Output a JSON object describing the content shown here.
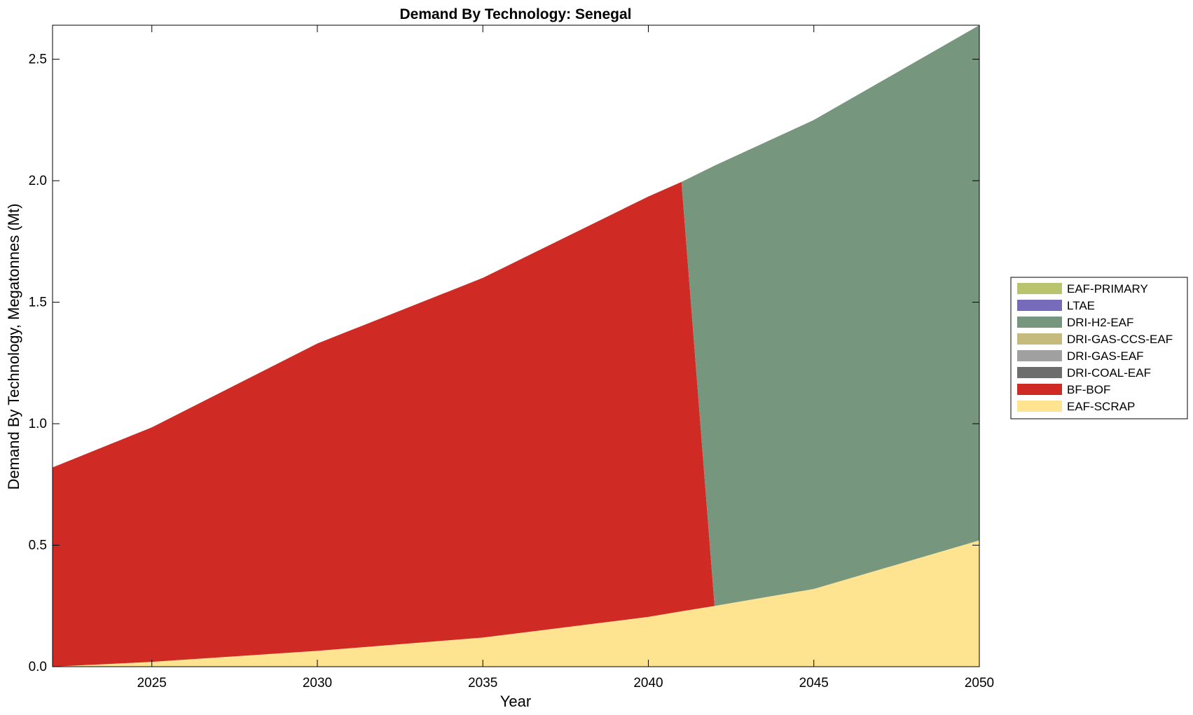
{
  "chart_data": {
    "type": "area",
    "stacked": true,
    "title": "Demand By Technology: Senegal",
    "xlabel": "Year",
    "ylabel": "Demand By Technology, Megatonnes (Mt)",
    "xlim": [
      2022,
      2050
    ],
    "ylim": [
      0,
      2.64
    ],
    "xticks": [
      2025,
      2030,
      2035,
      2040,
      2045,
      2050
    ],
    "yticks": [
      "0.0",
      "0.5",
      "1.0",
      "1.5",
      "2.0",
      "2.5"
    ],
    "grid": false,
    "legend_position": "right",
    "legend": [
      {
        "name": "EAF-PRIMARY",
        "color": "#bac36d"
      },
      {
        "name": "LTAE",
        "color": "#756bba"
      },
      {
        "name": "DRI-H2-EAF",
        "color": "#76977d"
      },
      {
        "name": "DRI-GAS-CCS-EAF",
        "color": "#c4bb7d"
      },
      {
        "name": "DRI-GAS-EAF",
        "color": "#a0a0a0"
      },
      {
        "name": "DRI-COAL-EAF",
        "color": "#6d6d6d"
      },
      {
        "name": "BF-BOF",
        "color": "#d02a24"
      },
      {
        "name": "EAF-SCRAP",
        "color": "#fee391"
      }
    ],
    "x": [
      2022,
      2025,
      2030,
      2035,
      2040,
      2041,
      2042,
      2045,
      2050
    ],
    "series": [
      {
        "name": "EAF-SCRAP",
        "color": "#fee391",
        "values": [
          0.0,
          0.02,
          0.065,
          0.12,
          0.205,
          0.228,
          0.25,
          0.32,
          0.52
        ]
      },
      {
        "name": "BF-BOF",
        "color": "#d02a24",
        "values": [
          0.82,
          0.965,
          1.265,
          1.48,
          1.73,
          1.767,
          0.0,
          0.0,
          0.0
        ]
      },
      {
        "name": "DRI-H2-EAF",
        "color": "#76977d",
        "values": [
          0.0,
          0.0,
          0.0,
          0.0,
          0.0,
          0.0,
          1.812,
          1.93,
          2.12
        ]
      }
    ]
  }
}
